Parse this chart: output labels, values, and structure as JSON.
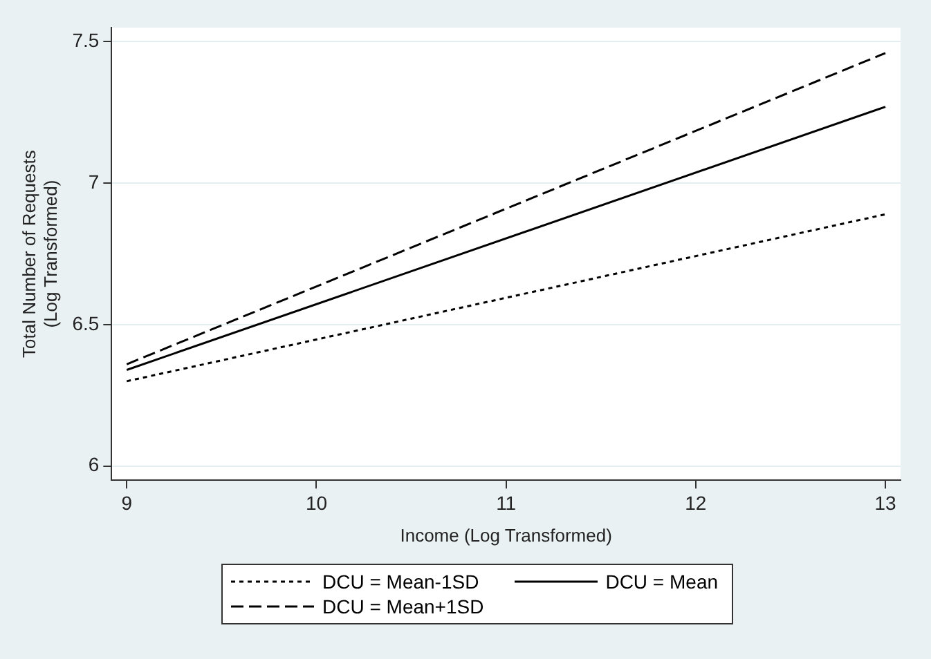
{
  "chart_data": {
    "type": "line",
    "xlabel": "Income (Log Transformed)",
    "ylabel": "Total Number of Requests\n(Log Transformed)",
    "xlim": [
      8.92,
      13.08
    ],
    "xticks": [
      9,
      10,
      11,
      12,
      13
    ],
    "ylim": [
      5.95,
      7.55
    ],
    "yticks": [
      6,
      6.5,
      7,
      7.5
    ],
    "grid": "y",
    "legend": "bottom",
    "marker": "none",
    "x": [
      9,
      13
    ],
    "series": [
      {
        "name": "DCU = Mean-1SD",
        "color": "#000000",
        "line_style": "dotted",
        "values": [
          6.3,
          6.89
        ]
      },
      {
        "name": "DCU = Mean",
        "color": "#000000",
        "line_style": "solid",
        "values": [
          6.34,
          7.27
        ]
      },
      {
        "name": "DCU = Mean+1SD",
        "color": "#000000",
        "line_style": "dashed",
        "values": [
          6.36,
          7.46
        ]
      }
    ]
  }
}
